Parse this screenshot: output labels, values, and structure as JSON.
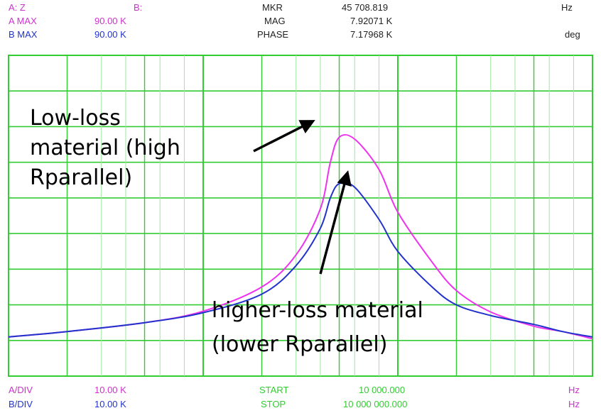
{
  "header": {
    "a_label": "A: Z",
    "b_label": "B:",
    "a_max_label": "A MAX",
    "a_max_value": "90.00  K",
    "b_max_label": "B MAX",
    "b_max_value": "90.00  K",
    "mkr_label": "MKR",
    "mkr_value": "45 708.819",
    "mkr_unit": "Hz",
    "mag_label": "MAG",
    "mag_value": "7.92071  K",
    "phase_label": "PHASE",
    "phase_value": "7.17968  K",
    "phase_unit": "deg"
  },
  "footer": {
    "a_div_label": "A/DIV",
    "a_div_value": "10.00  K",
    "b_div_label": "B/DIV",
    "b_div_value": "10.00  K",
    "start_label": "START",
    "start_value": "10 000.000",
    "start_unit": "Hz",
    "stop_label": "STOP",
    "stop_value": "10 000 000.000",
    "stop_unit": "Hz"
  },
  "annotations": {
    "low_loss_line1": "Low-loss",
    "low_loss_line2": "material (high",
    "low_loss_line3": "Rparallel)",
    "high_loss_line1": "higher-loss material",
    "high_loss_line2": "(lower Rparallel)"
  },
  "colors": {
    "grid": "#33cc33",
    "trace_a": "#ee33ee",
    "trace_b": "#2233cc",
    "background": "#ffffff"
  },
  "chart_data": {
    "type": "line",
    "x_scale": "log",
    "x_unit": "Hz",
    "xlim": [
      10000,
      10000000
    ],
    "ylim": [
      0,
      90
    ],
    "y_unit": "K",
    "grid": true,
    "grid_divisions": {
      "x": 10,
      "y": 9
    },
    "series": [
      {
        "color": "#ee33ee",
        "x": [
          10000,
          20000,
          50000,
          100000,
          200000,
          300000,
          400000,
          450000,
          500000,
          600000,
          800000,
          1000000,
          1500000,
          2000000,
          3000000,
          5000000,
          7000000,
          10000000
        ],
        "values": [
          11.0,
          12.5,
          15.0,
          18.2,
          25.0,
          34.0,
          47.0,
          60.0,
          67.0,
          66.5,
          58.0,
          46.0,
          32.0,
          24.0,
          18.0,
          14.0,
          12.5,
          10.5
        ]
      },
      {
        "color": "#2233cc",
        "x": [
          10000,
          20000,
          50000,
          100000,
          200000,
          300000,
          400000,
          450000,
          500000,
          600000,
          800000,
          1000000,
          1500000,
          2000000,
          3000000,
          5000000,
          7000000,
          10000000
        ],
        "values": [
          11.0,
          12.5,
          15.0,
          17.8,
          23.0,
          31.0,
          41.5,
          50.0,
          54.0,
          53.0,
          44.0,
          35.0,
          25.0,
          20.0,
          17.0,
          14.5,
          12.5,
          11.0
        ]
      }
    ]
  }
}
